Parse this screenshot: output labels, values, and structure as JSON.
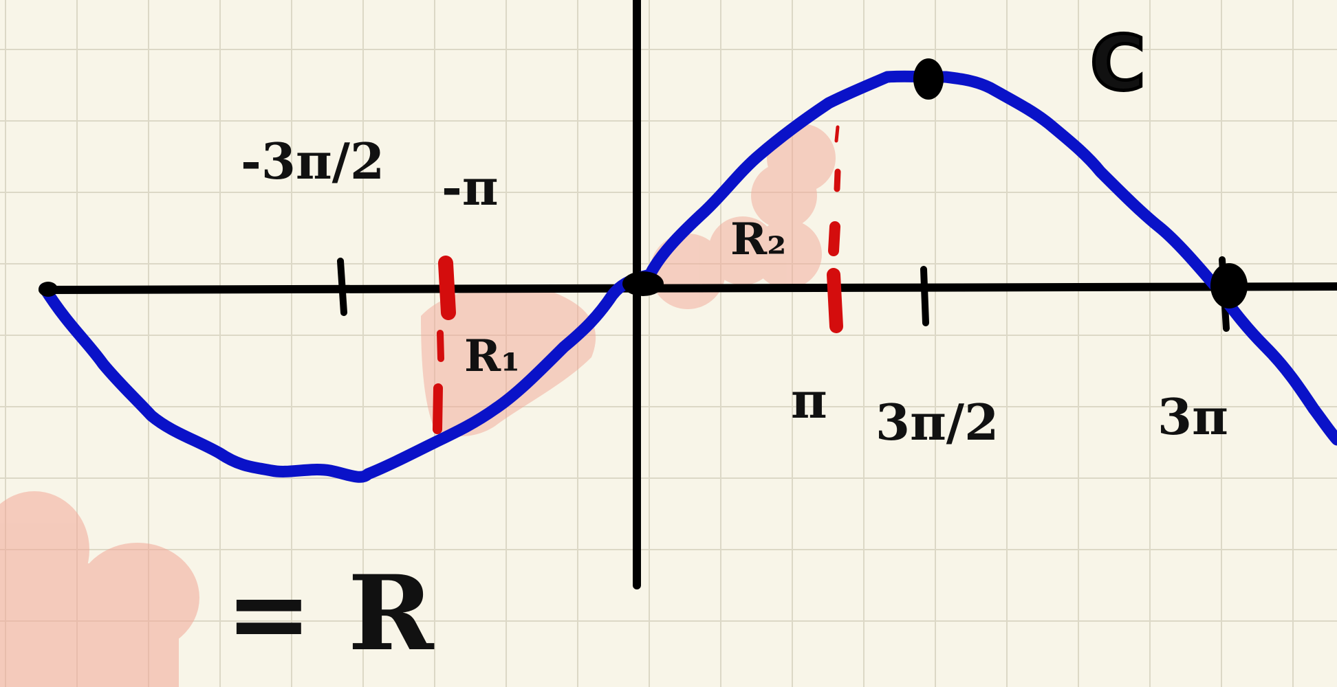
{
  "colors": {
    "paper": "#f8f5e8",
    "grid": "#dcd8c6",
    "ink": "#000000",
    "curve": "#0a12c8",
    "marker": "#d40d0d",
    "highlight": "#f2a898"
  },
  "labels": {
    "neg_three_pi_half": "-3π/2",
    "neg_pi": "-π",
    "pi": "π",
    "three_pi_half": "3π/2",
    "three_pi": "3π",
    "curve_name": "C",
    "region_one": "R₁",
    "region_two": "R₂",
    "legend_equals": "= R"
  }
}
